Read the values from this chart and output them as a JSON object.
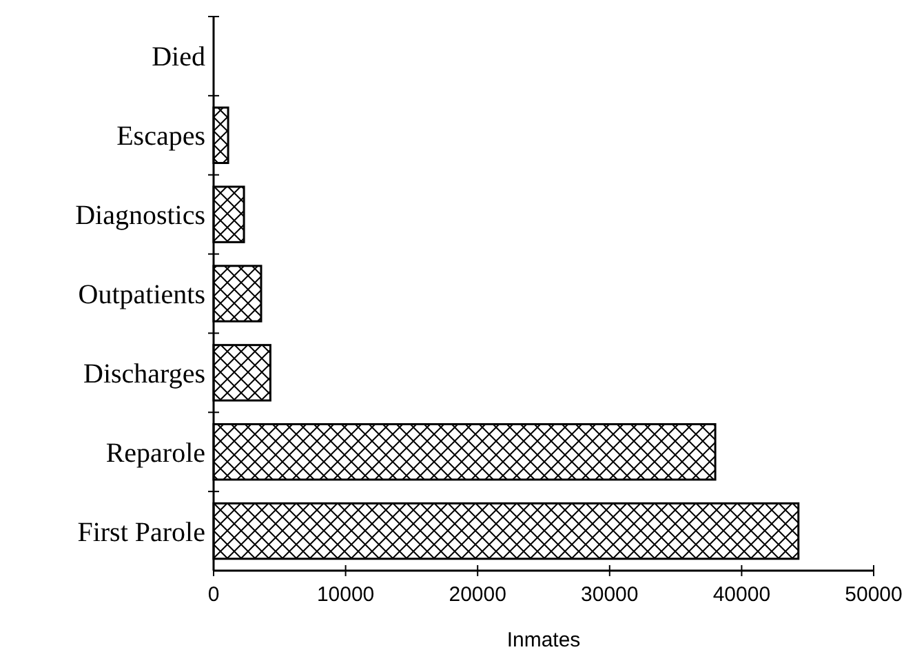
{
  "chart_data": {
    "type": "bar",
    "orientation": "horizontal",
    "xlabel": "Inmates",
    "categories": [
      "Died",
      "Escapes",
      "Diagnostics",
      "Outpatients",
      "Discharges",
      "Reparole",
      "First Parole"
    ],
    "values": [
      0,
      1100,
      2300,
      3600,
      4300,
      38000,
      44300
    ],
    "color": "#000000",
    "xlim": [
      0,
      50000
    ],
    "xticks": [
      0,
      10000,
      20000,
      30000,
      40000,
      50000
    ],
    "grid": false
  }
}
